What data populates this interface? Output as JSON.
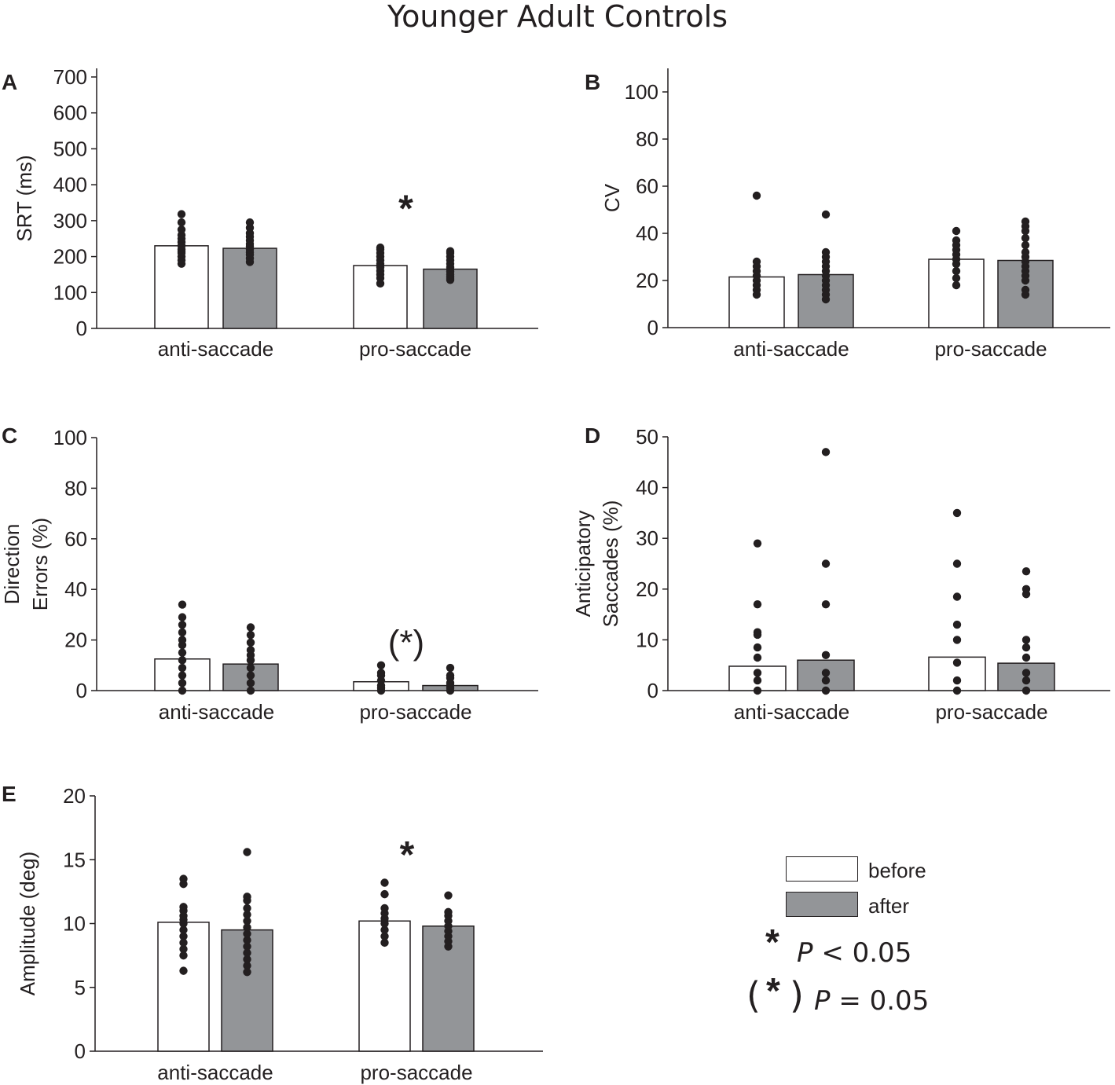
{
  "title": "Younger Adult Controls",
  "colors": {
    "before": "#ffffff",
    "after": "#939598",
    "dot": "#231f20",
    "axis": "#231f20"
  },
  "legend": {
    "before_label": "before",
    "after_label": "after",
    "sig1_symbol": "*",
    "sig1_p": "P",
    "sig1_rest": " < 0.05",
    "sig2_symbol": "*",
    "sig2_p": "P",
    "sig2_rest": " = 0.05"
  },
  "chart_data": [
    {
      "id": "A",
      "type": "bar",
      "ylabel": [
        "SRT (ms)"
      ],
      "ylim": [
        0,
        700
      ],
      "yticks": [
        0,
        100,
        200,
        300,
        400,
        500,
        600,
        700
      ],
      "categories": [
        "anti-saccade",
        "pro-saccade"
      ],
      "series": [
        {
          "name": "before",
          "values": [
            230,
            175
          ]
        },
        {
          "name": "after",
          "values": [
            223,
            165
          ]
        }
      ],
      "points": [
        [
          180,
          190,
          200,
          210,
          215,
          220,
          230,
          240,
          250,
          260,
          275,
          295,
          318
        ],
        [
          185,
          195,
          205,
          212,
          220,
          228,
          235,
          245,
          255,
          265,
          280,
          295
        ],
        [
          125,
          140,
          150,
          160,
          170,
          175,
          180,
          190,
          200,
          210,
          220,
          225
        ],
        [
          135,
          140,
          145,
          150,
          158,
          165,
          170,
          180,
          190,
          200,
          210,
          215
        ]
      ],
      "annotations": [
        {
          "category": "pro-saccade",
          "text": "*",
          "y": 338
        }
      ]
    },
    {
      "id": "B",
      "type": "bar",
      "ylabel": [
        "CV"
      ],
      "ylim": [
        0,
        110
      ],
      "yticks": [
        0,
        20,
        40,
        60,
        80,
        100
      ],
      "categories": [
        "anti-saccade",
        "pro-saccade"
      ],
      "series": [
        {
          "name": "before",
          "values": [
            21.5,
            29
          ]
        },
        {
          "name": "after",
          "values": [
            22.5,
            28.5
          ]
        }
      ],
      "points": [
        [
          14,
          16,
          18,
          20,
          22,
          24,
          26,
          28,
          56
        ],
        [
          12,
          14,
          16,
          18,
          20,
          22,
          24,
          26,
          28,
          30,
          32,
          48
        ],
        [
          18,
          21,
          24,
          27,
          29,
          31,
          33,
          35,
          37,
          41
        ],
        [
          14,
          16,
          20,
          22,
          24,
          26,
          28,
          30,
          32,
          35,
          38,
          41,
          43,
          45
        ]
      ],
      "annotations": []
    },
    {
      "id": "C",
      "type": "bar",
      "ylabel": [
        "Direction",
        "Errors (%)"
      ],
      "ylim": [
        0,
        100
      ],
      "yticks": [
        0,
        20,
        40,
        60,
        80,
        100
      ],
      "categories": [
        "anti-saccade",
        "pro-saccade"
      ],
      "series": [
        {
          "name": "before",
          "values": [
            12.5,
            3.5
          ]
        },
        {
          "name": "after",
          "values": [
            10.5,
            2
          ]
        }
      ],
      "points": [
        [
          0,
          3,
          6,
          9,
          12,
          15,
          18,
          20,
          23,
          26,
          29,
          34
        ],
        [
          0,
          3,
          6,
          9,
          12,
          14,
          16,
          19,
          22,
          25
        ],
        [
          0,
          1,
          2,
          4,
          6,
          7,
          10
        ],
        [
          0,
          1,
          2,
          3,
          5,
          6,
          9
        ]
      ],
      "annotations": [
        {
          "category": "pro-saccade",
          "text": "(*)",
          "y": 20
        }
      ]
    },
    {
      "id": "D",
      "type": "bar",
      "ylabel": [
        "Anticipatory",
        "Saccades (%)"
      ],
      "ylim": [
        0,
        50
      ],
      "yticks": [
        0,
        10,
        20,
        30,
        40,
        50
      ],
      "categories": [
        "anti-saccade",
        "pro-saccade"
      ],
      "series": [
        {
          "name": "before",
          "values": [
            4.8,
            6.6
          ]
        },
        {
          "name": "after",
          "values": [
            6,
            5.4
          ]
        }
      ],
      "points": [
        [
          0,
          2,
          3.5,
          6.5,
          8.5,
          11,
          11.5,
          17,
          29
        ],
        [
          0,
          2,
          3.5,
          7,
          17,
          25,
          47
        ],
        [
          0,
          2,
          5.5,
          10,
          13,
          18.5,
          25,
          35
        ],
        [
          0,
          2,
          3.5,
          6.5,
          8.5,
          10,
          19,
          20,
          23.5
        ]
      ],
      "annotations": []
    },
    {
      "id": "E",
      "type": "bar",
      "ylabel": [
        "Amplitude (deg)"
      ],
      "ylim": [
        0,
        20
      ],
      "yticks": [
        0,
        5,
        10,
        15,
        20
      ],
      "categories": [
        "anti-saccade",
        "pro-saccade"
      ],
      "series": [
        {
          "name": "before",
          "values": [
            10.1,
            10.2
          ]
        },
        {
          "name": "after",
          "values": [
            9.5,
            9.8
          ]
        }
      ],
      "points": [
        [
          6.3,
          7.5,
          8,
          8.5,
          9,
          9.5,
          10,
          10.3,
          10.6,
          11,
          11.3,
          13.1,
          13.5
        ],
        [
          6.2,
          6.7,
          7.2,
          7.7,
          8.2,
          8.7,
          9.2,
          9.7,
          10.2,
          10.7,
          11.2,
          11.8,
          12.1,
          15.6
        ],
        [
          8.5,
          9,
          9.5,
          10,
          10.4,
          10.8,
          11.2,
          12.3,
          13.2
        ],
        [
          8.2,
          8.6,
          9,
          9.4,
          9.8,
          10.2,
          10.6,
          10.9,
          12.2
        ]
      ],
      "annotations": [
        {
          "category": "pro-saccade",
          "text": "*",
          "y": 15.5
        }
      ]
    }
  ]
}
